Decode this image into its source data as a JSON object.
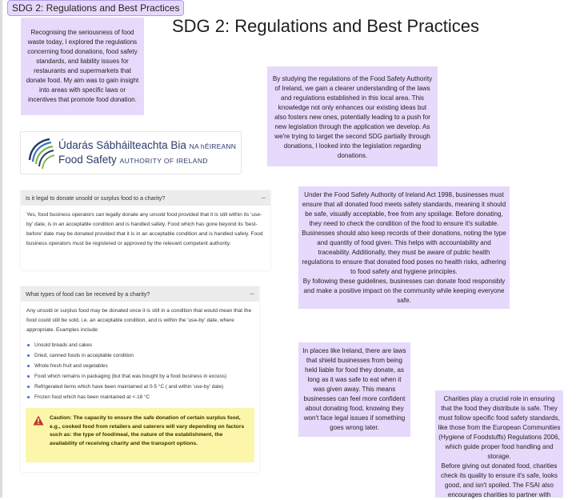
{
  "frame": {
    "tag": "SDG 2: Regulations and Best Practices"
  },
  "page": {
    "title": "SDG 2: Regulations and Best Practices"
  },
  "notes": {
    "intro": "Recognising the seriousness of food waste today, I explored the regulations concerning food donations, food safety standards, and liability issues for restaurants and supermarkets that donate food. My aim was to gain insight into areas with specific laws or incentives that promote food donation.",
    "fsai": "By studying the regulations of the Food Safety Authority of Ireland, we gain a clearer understanding of the laws and regulations established in this local area. This knowledge not only enhances our existing ideas but also fosters new ones, potentially leading to a push for new legislation through the application we develop. As we're trying to target the second SDG partially through donations, I looked into the legislation regarding donations.",
    "act_p1": "Under the Food Safety Authority of Ireland Act 1998, businesses must ensure that all donated food meets safety standards, meaning it should be safe, visually acceptable, free from any spoilage. Before donating, they need to check the condition of the food to ensure it's suitable. Businesses should also keep records of their donations, noting the type and quantity of food given. This helps with accountability and traceability. Additionally, they must be aware of public health regulations to ensure that donated food poses no health risks, adhering to food safety and hygiene principles.",
    "act_p2": "By following these guidelines, businesses can donate food responsibly and make a positive impact on the community while keeping everyone safe.",
    "laws": "In places like Ireland, there are laws that shield businesses from being held liable for food they donate, as long as it was safe to eat when it was given away. This means businesses can feel more confident about donating food, knowing they won't face legal issues if something goes wrong later.",
    "charities_p1": "Charities play a crucial role in ensuring that the food they distribute is safe. They must follow specific food safety standards, like those from the European Communities (Hygiene of Foodstuffs) Regulations 2006, which guide proper food handling and storage.",
    "charities_p2": "Before giving out donated food, charities check its quality to ensure it's safe, looks good, and isn't spoiled. The FSAI also encourages charities to partner with"
  },
  "logo": {
    "line1_main": "Údarás Sábháilteachta Bia",
    "line1_small": "NA hÉIREANN",
    "line2_main": "Food Safety",
    "line2_small": "AUTHORITY OF IRELAND",
    "colors": {
      "navy": "#2c3b6a",
      "green": "#7ab648",
      "blue": "#3a74b8"
    }
  },
  "faq": [
    {
      "question": "Is it legal to donate unsold or surplus food to a charity?",
      "toggle": "–",
      "answer": "Yes, food business operators can legally donate any unsold food provided that it is still within its 'use-by' date, is in an acceptable condition and is handled safely. Food which has gone beyond its 'best-before' date may be donated provided that it is in an acceptable condition and is handled safely. Food business operators must be registered or approved by the relevant competent authority."
    },
    {
      "question": "What types of food can be received by a charity?",
      "toggle": "–",
      "answer": "Any unsold or surplus food may be donated once it is still in a condition that would mean that the food could still be sold, i.e. an acceptable condition, and is within the 'use-by' date, where appropriate. Examples include:",
      "items": [
        "Unsold breads and cakes",
        "Dried, canned foods in acceptable condition",
        "Whole fresh fruit and vegetables",
        "Food which remains in packaging (but that was bought by a food business in excess)",
        "Refrigerated items which have been maintained at 0-5 °C ( and within 'use-by' date)",
        "Frozen food which has been maintained at <-18 °C"
      ],
      "caution": "Caution: The capacity to ensure the safe donation of certain surplus food, e.g., cooked food from retailers and caterers will vary depending on factors such as: the type of food/meal, the nature of the establishment, the availability of receiving charity and the transport options."
    }
  ],
  "colors": {
    "sticky": "#e7d9fb",
    "caution_bg": "#fbf6a9",
    "warning_icon": "#c0392b"
  }
}
